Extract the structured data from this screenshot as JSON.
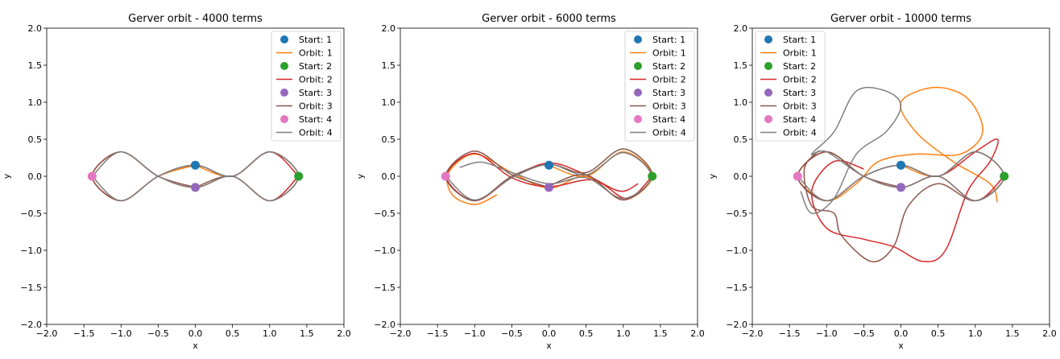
{
  "chart_data": [
    {
      "type": "line",
      "title": "Gerver orbit - 4000 terms",
      "xlabel": "x",
      "ylabel": "y",
      "xlim": [
        -2.0,
        2.0
      ],
      "ylim": [
        -2.0,
        2.0
      ],
      "xticks": [
        "−2.0",
        "−1.5",
        "−1.0",
        "−0.5",
        "0.0",
        "0.5",
        "1.0",
        "1.5",
        "2.0"
      ],
      "yticks": [
        "−2.0",
        "−1.5",
        "−1.0",
        "−0.5",
        "0.0",
        "0.5",
        "1.0",
        "1.5",
        "2.0"
      ],
      "legend_position": "top-right",
      "start_points": [
        {
          "name": "Start: 1",
          "x": 0.0,
          "y": 0.15,
          "color": "#1f77b4"
        },
        {
          "name": "Start: 2",
          "x": 1.39,
          "y": 0.0,
          "color": "#2ca02c"
        },
        {
          "name": "Start: 3",
          "x": 0.0,
          "y": -0.15,
          "color": "#9467bd"
        },
        {
          "name": "Start: 4",
          "x": -1.39,
          "y": 0.0,
          "color": "#e377c2"
        }
      ],
      "series": [
        {
          "name": "Orbit: 1",
          "color": "#ff7f0e",
          "points": [
            [
              0.0,
              0.15
            ],
            [
              0.5,
              0.0
            ],
            [
              1.0,
              0.33
            ],
            [
              1.39,
              0.0
            ],
            [
              1.0,
              -0.33
            ],
            [
              0.5,
              0.0
            ],
            [
              0.0,
              -0.15
            ],
            [
              -0.5,
              0.0
            ],
            [
              -1.0,
              0.33
            ],
            [
              -1.39,
              0.0
            ],
            [
              -1.0,
              -0.33
            ],
            [
              -0.5,
              0.0
            ],
            [
              0.0,
              0.15
            ]
          ]
        },
        {
          "name": "Orbit: 2",
          "color": "#d62728",
          "points": [
            [
              1.39,
              0.0
            ],
            [
              1.0,
              -0.33
            ],
            [
              0.5,
              0.0
            ],
            [
              0.0,
              -0.15
            ],
            [
              -0.5,
              0.0
            ],
            [
              -1.0,
              0.33
            ],
            [
              -1.39,
              0.0
            ],
            [
              -1.0,
              -0.33
            ],
            [
              -0.5,
              0.0
            ],
            [
              0.0,
              0.15
            ],
            [
              0.5,
              0.0
            ],
            [
              1.0,
              0.33
            ],
            [
              1.39,
              0.0
            ]
          ]
        },
        {
          "name": "Orbit: 3",
          "color": "#8c564b",
          "points": [
            [
              0.0,
              -0.15
            ],
            [
              -0.5,
              0.0
            ],
            [
              -1.0,
              0.33
            ],
            [
              -1.39,
              0.0
            ],
            [
              -1.0,
              -0.33
            ],
            [
              -0.5,
              0.0
            ],
            [
              0.0,
              0.15
            ],
            [
              0.5,
              0.0
            ],
            [
              1.0,
              0.33
            ],
            [
              1.39,
              0.0
            ],
            [
              1.0,
              -0.33
            ],
            [
              0.5,
              0.0
            ],
            [
              0.0,
              -0.15
            ]
          ]
        },
        {
          "name": "Orbit: 4",
          "color": "#7f7f7f",
          "points": [
            [
              -1.39,
              0.0
            ],
            [
              -1.0,
              -0.33
            ],
            [
              -0.5,
              0.0
            ],
            [
              0.0,
              0.15
            ],
            [
              0.5,
              0.0
            ],
            [
              1.0,
              0.33
            ],
            [
              1.39,
              0.0
            ],
            [
              1.0,
              -0.33
            ],
            [
              0.5,
              0.0
            ],
            [
              0.0,
              -0.15
            ],
            [
              -0.5,
              0.0
            ],
            [
              -1.0,
              0.33
            ],
            [
              -1.39,
              0.0
            ]
          ]
        }
      ]
    },
    {
      "type": "line",
      "title": "Gerver orbit - 6000 terms",
      "xlabel": "x",
      "ylabel": "y",
      "xlim": [
        -2.0,
        2.0
      ],
      "ylim": [
        -2.0,
        2.0
      ],
      "xticks": [
        "−2.0",
        "−1.5",
        "−1.0",
        "−0.5",
        "0.0",
        "0.5",
        "1.0",
        "1.5",
        "2.0"
      ],
      "yticks": [
        "−2.0",
        "−1.5",
        "−1.0",
        "−0.5",
        "0.0",
        "0.5",
        "1.0",
        "1.5",
        "2.0"
      ],
      "legend_position": "top-right",
      "start_points": [
        {
          "name": "Start: 1",
          "x": 0.0,
          "y": 0.15,
          "color": "#1f77b4"
        },
        {
          "name": "Start: 2",
          "x": 1.39,
          "y": 0.0,
          "color": "#2ca02c"
        },
        {
          "name": "Start: 3",
          "x": 0.0,
          "y": -0.15,
          "color": "#9467bd"
        },
        {
          "name": "Start: 4",
          "x": -1.39,
          "y": 0.0,
          "color": "#e377c2"
        }
      ],
      "series": [
        {
          "name": "Orbit: 1",
          "color": "#ff7f0e",
          "points": [
            [
              0.0,
              0.15
            ],
            [
              0.5,
              0.0
            ],
            [
              1.0,
              0.33
            ],
            [
              1.39,
              0.0
            ],
            [
              1.0,
              -0.32
            ],
            [
              0.5,
              0.0
            ],
            [
              0.0,
              -0.16
            ],
            [
              -0.5,
              0.05
            ],
            [
              -1.0,
              0.3
            ],
            [
              -1.35,
              0.05
            ],
            [
              -1.3,
              -0.25
            ],
            [
              -1.0,
              -0.38
            ],
            [
              -0.7,
              -0.25
            ]
          ]
        },
        {
          "name": "Orbit: 2",
          "color": "#d62728",
          "points": [
            [
              1.39,
              0.0
            ],
            [
              1.05,
              -0.3
            ],
            [
              0.6,
              -0.05
            ],
            [
              0.0,
              -0.14
            ],
            [
              -0.5,
              -0.02
            ],
            [
              -1.0,
              0.31
            ],
            [
              -1.38,
              0.0
            ],
            [
              -1.0,
              -0.33
            ],
            [
              -0.5,
              -0.02
            ],
            [
              0.0,
              0.18
            ],
            [
              0.5,
              0.02
            ],
            [
              0.95,
              -0.2
            ],
            [
              1.2,
              -0.1
            ]
          ]
        },
        {
          "name": "Orbit: 3",
          "color": "#8c564b",
          "points": [
            [
              0.0,
              -0.15
            ],
            [
              -0.5,
              0.02
            ],
            [
              -1.0,
              0.34
            ],
            [
              -1.39,
              0.0
            ],
            [
              -1.0,
              -0.33
            ],
            [
              -0.5,
              0.0
            ],
            [
              0.0,
              0.16
            ],
            [
              0.5,
              0.05
            ],
            [
              1.0,
              0.37
            ],
            [
              1.39,
              0.02
            ],
            [
              1.0,
              -0.32
            ],
            [
              0.5,
              0.02
            ],
            [
              0.0,
              -0.13
            ]
          ]
        },
        {
          "name": "Orbit: 4",
          "color": "#7f7f7f",
          "points": [
            [
              -1.39,
              0.0
            ],
            [
              -1.0,
              -0.32
            ],
            [
              -0.5,
              -0.02
            ],
            [
              0.0,
              0.16
            ],
            [
              0.5,
              0.02
            ],
            [
              1.0,
              0.32
            ],
            [
              1.38,
              0.0
            ],
            [
              1.0,
              -0.3
            ],
            [
              0.5,
              -0.02
            ],
            [
              0.0,
              -0.1
            ],
            [
              -0.5,
              0.05
            ],
            [
              -0.9,
              0.19
            ],
            [
              -1.2,
              0.12
            ]
          ]
        }
      ]
    },
    {
      "type": "line",
      "title": "Gerver orbit - 10000 terms",
      "xlabel": "x",
      "ylabel": "y",
      "xlim": [
        -2.0,
        2.0
      ],
      "ylim": [
        -2.0,
        2.0
      ],
      "xticks": [
        "−2.0",
        "−1.5",
        "−1.0",
        "−0.5",
        "0.0",
        "0.5",
        "1.0",
        "1.5",
        "2.0"
      ],
      "yticks": [
        "−2.0",
        "−1.5",
        "−1.0",
        "−0.5",
        "0.0",
        "0.5",
        "1.0",
        "1.5",
        "2.0"
      ],
      "legend_position": "top-left",
      "start_points": [
        {
          "name": "Start: 1",
          "x": 0.0,
          "y": 0.15,
          "color": "#1f77b4"
        },
        {
          "name": "Start: 2",
          "x": 1.39,
          "y": 0.0,
          "color": "#2ca02c"
        },
        {
          "name": "Start: 3",
          "x": 0.0,
          "y": -0.15,
          "color": "#9467bd"
        },
        {
          "name": "Start: 4",
          "x": -1.39,
          "y": 0.0,
          "color": "#e377c2"
        }
      ],
      "series": [
        {
          "name": "Orbit: 1",
          "color": "#ff7f0e",
          "points": [
            [
              0.0,
              0.15
            ],
            [
              0.5,
              0.0
            ],
            [
              1.0,
              0.33
            ],
            [
              1.39,
              0.0
            ],
            [
              1.0,
              -0.33
            ],
            [
              0.5,
              0.0
            ],
            [
              0.0,
              -0.15
            ],
            [
              -0.5,
              0.0
            ],
            [
              -1.0,
              0.33
            ],
            [
              -1.39,
              0.0
            ],
            [
              -1.0,
              -0.33
            ],
            [
              -0.6,
              -0.1
            ],
            [
              -0.3,
              0.2
            ],
            [
              0.2,
              0.3
            ],
            [
              0.8,
              0.3
            ],
            [
              1.1,
              0.6
            ],
            [
              0.9,
              1.05
            ],
            [
              0.45,
              1.2
            ],
            [
              0.0,
              1.0
            ],
            [
              0.2,
              0.6
            ],
            [
              0.7,
              0.2
            ],
            [
              1.2,
              -0.1
            ],
            [
              1.3,
              -0.35
            ]
          ]
        },
        {
          "name": "Orbit: 2",
          "color": "#d62728",
          "points": [
            [
              1.39,
              0.0
            ],
            [
              1.0,
              -0.33
            ],
            [
              0.5,
              0.0
            ],
            [
              0.0,
              -0.15
            ],
            [
              -0.5,
              0.0
            ],
            [
              -1.0,
              0.33
            ],
            [
              -1.39,
              0.0
            ],
            [
              -1.0,
              -0.33
            ],
            [
              -0.5,
              0.0
            ],
            [
              0.0,
              0.15
            ],
            [
              0.5,
              0.0
            ],
            [
              1.0,
              0.33
            ],
            [
              1.3,
              0.5
            ],
            [
              1.2,
              0.2
            ],
            [
              0.9,
              -0.2
            ],
            [
              0.6,
              -1.0
            ],
            [
              0.3,
              -1.15
            ],
            [
              -0.1,
              -0.95
            ],
            [
              -0.5,
              -0.85
            ],
            [
              -1.0,
              -0.7
            ],
            [
              -1.2,
              -0.2
            ],
            [
              -0.9,
              0.2
            ],
            [
              -0.5,
              0.1
            ]
          ]
        },
        {
          "name": "Orbit: 3",
          "color": "#8c564b",
          "points": [
            [
              0.0,
              -0.15
            ],
            [
              -0.5,
              0.0
            ],
            [
              -1.0,
              0.33
            ],
            [
              -1.39,
              0.0
            ],
            [
              -1.0,
              -0.33
            ],
            [
              -0.5,
              0.0
            ],
            [
              0.0,
              0.15
            ],
            [
              0.5,
              0.0
            ],
            [
              1.0,
              0.33
            ],
            [
              1.39,
              0.0
            ],
            [
              1.0,
              -0.33
            ],
            [
              0.5,
              -0.1
            ],
            [
              0.1,
              -0.4
            ],
            [
              -0.1,
              -0.95
            ],
            [
              -0.4,
              -1.15
            ],
            [
              -0.8,
              -0.8
            ],
            [
              -0.9,
              -0.5
            ],
            [
              -1.2,
              -0.4
            ],
            [
              -1.3,
              0.1
            ],
            [
              -1.1,
              0.35
            ]
          ]
        },
        {
          "name": "Orbit: 4",
          "color": "#7f7f7f",
          "points": [
            [
              -1.39,
              0.0
            ],
            [
              -1.0,
              -0.33
            ],
            [
              -0.5,
              0.0
            ],
            [
              0.0,
              0.15
            ],
            [
              0.5,
              0.0
            ],
            [
              1.0,
              0.33
            ],
            [
              1.39,
              0.0
            ],
            [
              1.0,
              -0.33
            ],
            [
              0.5,
              0.0
            ],
            [
              0.0,
              -0.15
            ],
            [
              -0.5,
              0.0
            ],
            [
              -1.0,
              0.33
            ],
            [
              -1.2,
              0.3
            ],
            [
              -0.9,
              0.6
            ],
            [
              -0.6,
              1.15
            ],
            [
              -0.2,
              1.15
            ],
            [
              0.0,
              0.95
            ],
            [
              -0.2,
              0.6
            ],
            [
              -0.6,
              0.3
            ],
            [
              -0.9,
              -0.3
            ],
            [
              -1.2,
              -0.5
            ],
            [
              -1.35,
              -0.2
            ]
          ]
        }
      ]
    }
  ]
}
